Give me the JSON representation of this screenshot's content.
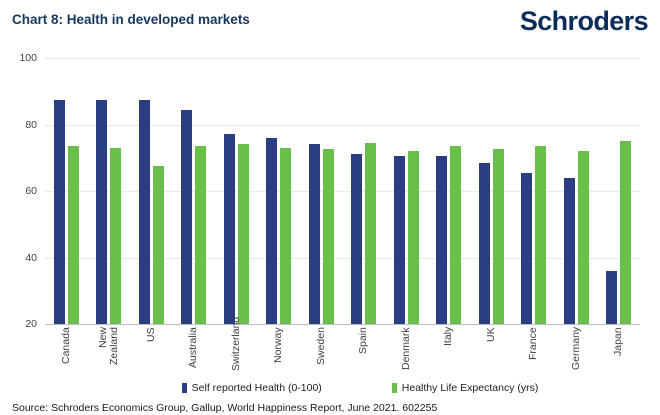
{
  "header": {
    "title": "Chart 8: Health in developed markets",
    "logo_text": "Schroders"
  },
  "chart_data": {
    "type": "bar",
    "categories": [
      "Canada",
      "New Zealand",
      "US",
      "Australia",
      "Switzerland",
      "Norway",
      "Sweden",
      "Spain",
      "Denmark",
      "Italy",
      "UK",
      "France",
      "Germany",
      "Japan"
    ],
    "series": [
      {
        "name": "Self reported Health (0-100)",
        "color": "#2a3d82",
        "values": [
          87.5,
          87.5,
          87.5,
          84.5,
          77,
          76,
          74,
          71,
          70.5,
          70.5,
          68.5,
          65.5,
          64,
          36
        ]
      },
      {
        "name": "Healthy Life Expectancy (yrs)",
        "color": "#6abf4b",
        "values": [
          73.5,
          73,
          67.5,
          73.5,
          74,
          73,
          72.5,
          74.5,
          72,
          73.5,
          72.5,
          73.5,
          72,
          75
        ]
      }
    ],
    "title": "Chart 8: Health in developed markets",
    "xlabel": "",
    "ylabel": "",
    "ylim": [
      20,
      100
    ],
    "yticks": [
      20,
      40,
      60,
      80,
      100
    ],
    "grid": true,
    "legend_position": "bottom"
  },
  "footer": {
    "source": "Source: Schroders Economics Group, Gallup, World Happiness Report, June 2021. 602255"
  }
}
